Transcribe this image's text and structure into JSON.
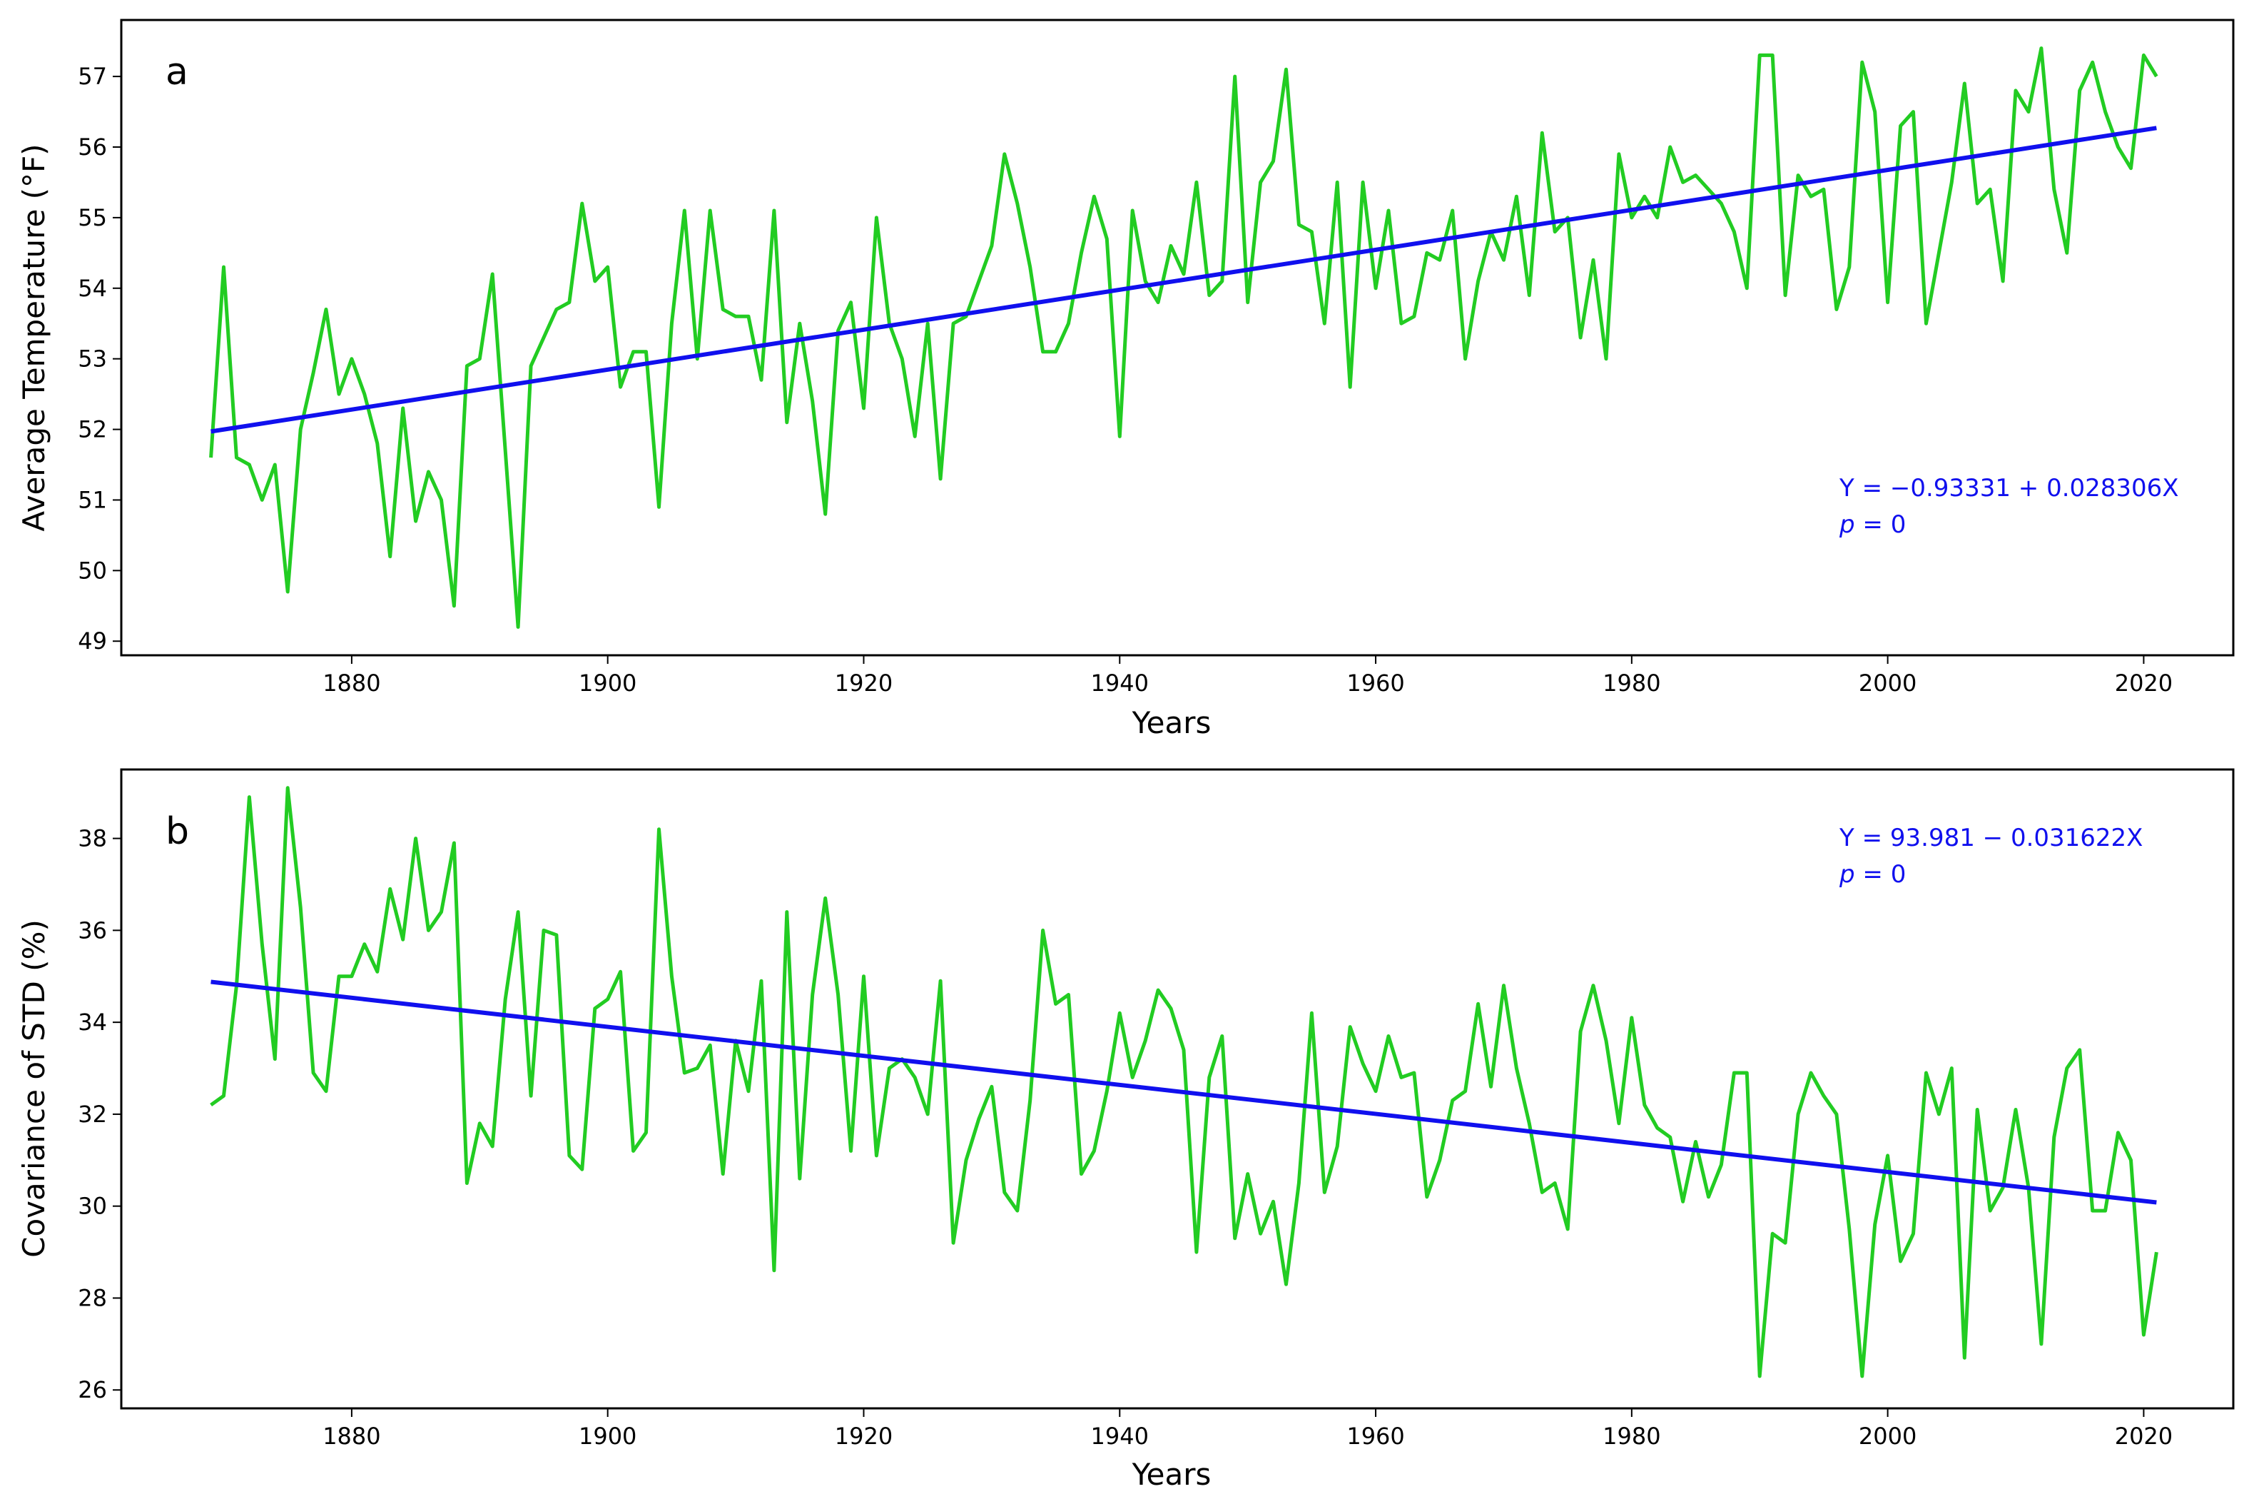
{
  "colors": {
    "data_line": "#22cc22",
    "fit_line": "#1010ee",
    "annotation": "#1010ee",
    "axes": "#000000"
  },
  "chart_data": [
    {
      "type": "line",
      "panel": "a",
      "xlabel": "Years",
      "ylabel": "Average Temperature (°F)",
      "xlim": [
        1862,
        2027
      ],
      "ylim": [
        48.8,
        57.8
      ],
      "xticks": [
        1880,
        1900,
        1920,
        1940,
        1960,
        1980,
        2000,
        2020
      ],
      "yticks": [
        49,
        50,
        51,
        52,
        53,
        54,
        55,
        56,
        57
      ],
      "x_start": 1869,
      "series": [
        {
          "name": "annual average temperature",
          "values": [
            51.6,
            54.3,
            51.6,
            51.5,
            51.0,
            51.5,
            49.7,
            52.0,
            52.8,
            53.7,
            52.5,
            53.0,
            52.5,
            51.8,
            50.2,
            52.3,
            50.7,
            51.4,
            51.0,
            49.5,
            52.9,
            53.0,
            54.2,
            51.7,
            49.2,
            52.9,
            53.3,
            53.7,
            53.8,
            55.2,
            54.1,
            54.3,
            52.6,
            53.1,
            53.1,
            50.9,
            53.5,
            55.1,
            53.0,
            55.1,
            53.7,
            53.6,
            53.6,
            52.7,
            55.1,
            52.1,
            53.5,
            52.4,
            50.8,
            53.4,
            53.8,
            52.3,
            55.0,
            53.5,
            53.0,
            51.9,
            53.5,
            51.3,
            53.5,
            53.6,
            54.1,
            54.6,
            55.9,
            55.2,
            54.3,
            53.1,
            53.1,
            53.5,
            54.5,
            55.3,
            54.7,
            51.9,
            55.1,
            54.1,
            53.8,
            54.6,
            54.2,
            55.5,
            53.9,
            54.1,
            57.0,
            53.8,
            55.5,
            55.8,
            57.1,
            54.9,
            54.8,
            53.5,
            55.5,
            52.6,
            55.5,
            54.0,
            55.1,
            53.5,
            53.6,
            54.5,
            54.4,
            55.1,
            53.0,
            54.1,
            54.8,
            54.4,
            55.3,
            53.9,
            56.2,
            54.8,
            55.0,
            53.3,
            54.4,
            53.0,
            55.9,
            55.0,
            55.3,
            55.0,
            56.0,
            55.5,
            55.6,
            55.4,
            55.2,
            54.8,
            54.0,
            57.3,
            57.3,
            53.9,
            55.6,
            55.3,
            55.4,
            53.7,
            54.3,
            57.2,
            56.5,
            53.8,
            56.3,
            56.5,
            53.5,
            54.5,
            55.5,
            56.9,
            55.2,
            55.4,
            54.1,
            56.8,
            56.5,
            57.4,
            55.4,
            54.5,
            56.8,
            57.2,
            56.5,
            56.0,
            55.7,
            57.3,
            57.0
          ]
        },
        {
          "name": "linear fit",
          "x": [
            1869,
            2021
          ],
          "values": [
            51.97,
            56.27
          ]
        }
      ],
      "annotations": {
        "equation": "Y = −0.93331 + 0.028306X",
        "p_symbol": "p",
        "p_rest": " = 0"
      }
    },
    {
      "type": "line",
      "panel": "b",
      "xlabel": "Years",
      "ylabel": "Covariance of STD (%)",
      "xlim": [
        1862,
        2027
      ],
      "ylim": [
        25.6,
        39.5
      ],
      "xticks": [
        1880,
        1900,
        1920,
        1940,
        1960,
        1980,
        2000,
        2020
      ],
      "yticks": [
        26,
        28,
        30,
        32,
        34,
        36,
        38
      ],
      "x_start": 1869,
      "series": [
        {
          "name": "covariance of STD",
          "values": [
            32.2,
            32.4,
            34.8,
            38.9,
            35.7,
            33.2,
            39.1,
            36.5,
            32.9,
            32.5,
            35.0,
            35.0,
            35.7,
            35.1,
            36.9,
            35.8,
            38.0,
            36.0,
            36.4,
            37.9,
            30.5,
            31.8,
            31.3,
            34.5,
            36.4,
            32.4,
            36.0,
            35.9,
            31.1,
            30.8,
            34.3,
            34.5,
            35.1,
            31.2,
            31.6,
            38.2,
            35.0,
            32.9,
            33.0,
            33.5,
            30.7,
            33.6,
            32.5,
            34.9,
            28.6,
            36.4,
            30.6,
            34.6,
            36.7,
            34.6,
            31.2,
            35.0,
            31.1,
            33.0,
            33.2,
            32.8,
            32.0,
            34.9,
            29.2,
            31.0,
            31.9,
            32.6,
            30.3,
            29.9,
            32.3,
            36.0,
            34.4,
            34.6,
            30.7,
            31.2,
            32.5,
            34.2,
            32.8,
            33.6,
            34.7,
            34.3,
            33.4,
            29.0,
            32.8,
            33.7,
            29.3,
            30.7,
            29.4,
            30.1,
            28.3,
            30.5,
            34.2,
            30.3,
            31.3,
            33.9,
            33.1,
            32.5,
            33.7,
            32.8,
            32.9,
            30.2,
            31.0,
            32.3,
            32.5,
            34.4,
            32.6,
            34.8,
            33.0,
            31.8,
            30.3,
            30.5,
            29.5,
            33.8,
            34.8,
            33.6,
            31.8,
            34.1,
            32.2,
            31.7,
            31.5,
            30.1,
            31.4,
            30.2,
            30.9,
            32.9,
            32.9,
            26.3,
            29.4,
            29.2,
            32.0,
            32.9,
            32.4,
            32.0,
            29.5,
            26.3,
            29.6,
            31.1,
            28.8,
            29.4,
            32.9,
            32.0,
            33.0,
            26.7,
            32.1,
            29.9,
            30.4,
            32.1,
            30.4,
            27.0,
            31.5,
            33.0,
            33.4,
            29.9,
            29.9,
            31.6,
            31.0,
            27.2,
            29.0
          ]
        },
        {
          "name": "linear fit",
          "x": [
            1869,
            2021
          ],
          "values": [
            34.88,
            30.08
          ]
        }
      ],
      "annotations": {
        "equation": "Y = 93.981 − 0.031622X",
        "p_symbol": "p",
        "p_rest": " = 0"
      }
    }
  ]
}
